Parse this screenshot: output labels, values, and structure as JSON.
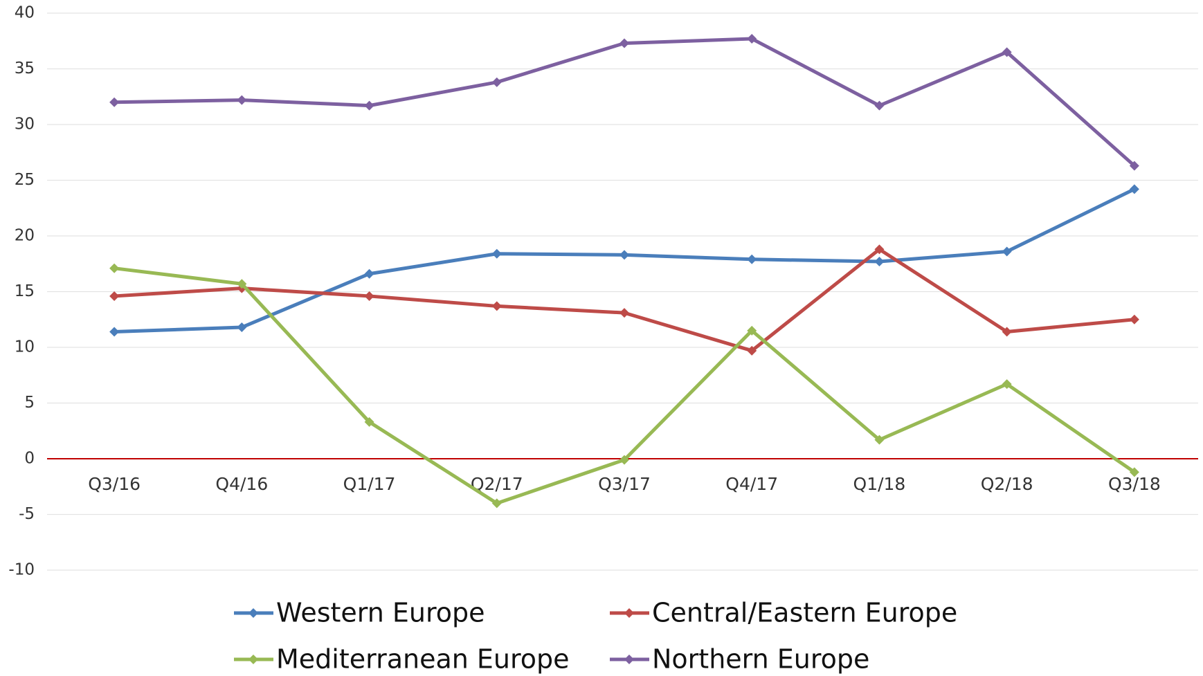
{
  "chart_data": {
    "type": "line",
    "categories": [
      "Q3/16",
      "Q4/16",
      "Q1/17",
      "Q2/17",
      "Q3/17",
      "Q4/17",
      "Q1/18",
      "Q2/18",
      "Q3/18"
    ],
    "series": [
      {
        "name": "Western Europe",
        "color": "#4a7ebb",
        "values": [
          11.4,
          11.8,
          16.6,
          18.4,
          18.3,
          17.9,
          17.7,
          18.6,
          24.2
        ]
      },
      {
        "name": "Central/Eastern Europe",
        "color": "#be4b48",
        "values": [
          14.6,
          15.3,
          14.6,
          13.7,
          13.1,
          9.7,
          18.8,
          11.4,
          12.5
        ]
      },
      {
        "name": "Mediterranean Europe",
        "color": "#98b954",
        "values": [
          17.1,
          15.7,
          3.3,
          -4.0,
          -0.1,
          11.5,
          1.7,
          6.7,
          -1.2
        ]
      },
      {
        "name": "Northern Europe",
        "color": "#7d60a0",
        "values": [
          32.0,
          32.2,
          31.7,
          33.8,
          37.3,
          37.7,
          31.7,
          36.5,
          26.3
        ]
      }
    ],
    "ylim": [
      -10,
      40
    ],
    "yticks": [
      -10,
      -5,
      0,
      5,
      10,
      15,
      20,
      25,
      30,
      35,
      40
    ],
    "grid": true,
    "zero_line_color": "#c00000",
    "legend": "bottom"
  }
}
